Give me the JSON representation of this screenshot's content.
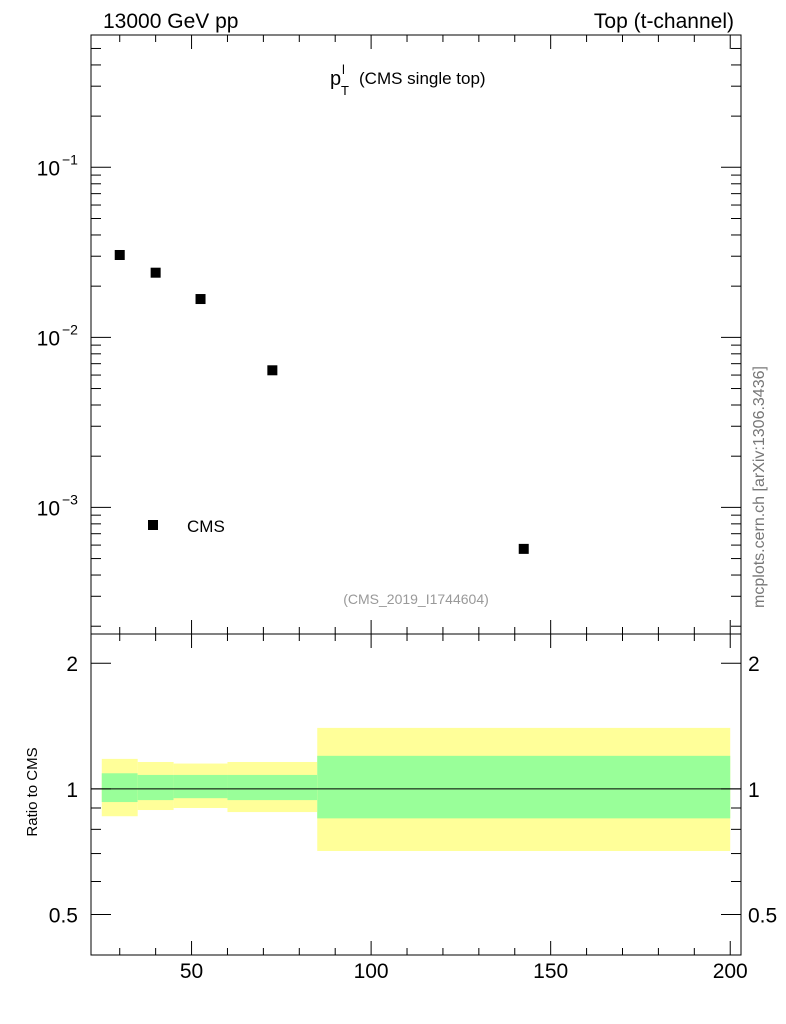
{
  "header": {
    "left": "13000 GeV pp",
    "right": "Top (t-channel)"
  },
  "watermark": "mcplots.cern.ch [arXiv:1306.3436]",
  "chart_data": [
    {
      "type": "scatter",
      "title_main": "p",
      "title_sup": "l",
      "title_sub": "T",
      "title_rest": "(CMS single top)",
      "analysis_id": "(CMS_2019_I1744604)",
      "yscale": "log",
      "ylim": [
        0.00018,
        0.6
      ],
      "xlim": [
        22,
        203
      ],
      "y_ticks": [
        {
          "value": 0.1,
          "base": "10",
          "exp": "−1"
        },
        {
          "value": 0.01,
          "base": "10",
          "exp": "−2"
        },
        {
          "value": 0.001,
          "base": "10",
          "exp": "−3"
        }
      ],
      "series": [
        {
          "name": "CMS",
          "marker": "square",
          "color": "#000000",
          "x": [
            30,
            40,
            52.5,
            72.5,
            142.5
          ],
          "y": [
            0.0305,
            0.024,
            0.0168,
            0.0064,
            0.00057
          ]
        }
      ],
      "legend": {
        "position": "bottom-left",
        "label": "CMS"
      }
    },
    {
      "type": "area",
      "ylabel": "Ratio to CMS",
      "ylim": [
        0.4,
        2.35
      ],
      "xlim": [
        22,
        203
      ],
      "y_ticks_major": [
        {
          "value": 0.5,
          "label": "0.5"
        },
        {
          "value": 1,
          "label": "1"
        },
        {
          "value": 2,
          "label": "2"
        }
      ],
      "x_ticks_major": [
        {
          "value": 50,
          "label": "50"
        },
        {
          "value": 100,
          "label": "100"
        },
        {
          "value": 150,
          "label": "150"
        },
        {
          "value": 200,
          "label": "200"
        }
      ],
      "reference_line": 1,
      "band_colors": {
        "outer": "#ffff99",
        "inner": "#99ff99"
      },
      "bins": [
        {
          "lo": 25,
          "hi": 35,
          "inner": [
            0.93,
            1.09
          ],
          "outer": [
            0.86,
            1.18
          ]
        },
        {
          "lo": 35,
          "hi": 45,
          "inner": [
            0.94,
            1.08
          ],
          "outer": [
            0.89,
            1.16
          ]
        },
        {
          "lo": 45,
          "hi": 60,
          "inner": [
            0.95,
            1.08
          ],
          "outer": [
            0.9,
            1.15
          ]
        },
        {
          "lo": 60,
          "hi": 85,
          "inner": [
            0.94,
            1.08
          ],
          "outer": [
            0.88,
            1.16
          ]
        },
        {
          "lo": 85,
          "hi": 200,
          "inner": [
            0.85,
            1.2
          ],
          "outer": [
            0.71,
            1.4
          ]
        }
      ]
    }
  ]
}
